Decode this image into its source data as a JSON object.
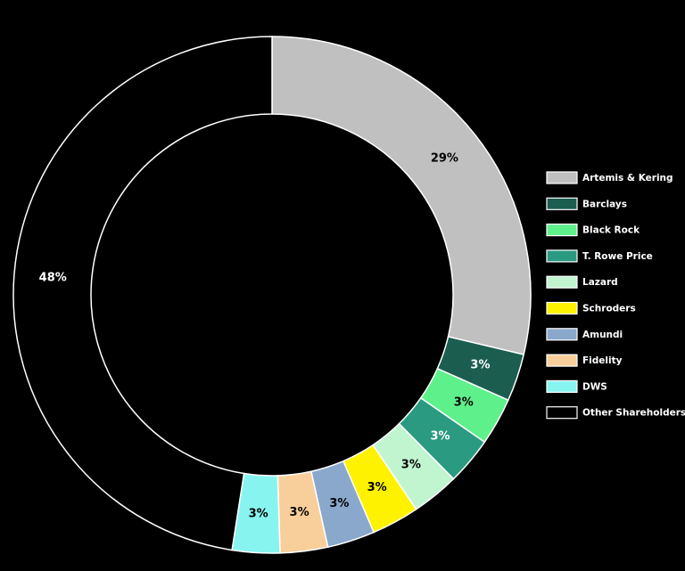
{
  "chart_data": {
    "type": "donut",
    "categories": [
      "Artemis & Kering",
      "Barclays",
      "Black Rock",
      "T. Rowe Price",
      "Lazard",
      "Schroders",
      "Amundi",
      "Fidelity",
      "DWS",
      "Other Shareholders"
    ],
    "values": [
      29,
      3,
      3,
      3,
      3,
      3,
      3,
      3,
      3,
      48
    ],
    "value_labels": [
      "29%",
      "3%",
      "3%",
      "3%",
      "3%",
      "3%",
      "3%",
      "3%",
      "3%",
      "48%"
    ],
    "colors": [
      "#c0c0c0",
      "#1b5e50",
      "#5ef08a",
      "#2a9a80",
      "#c0f5d0",
      "#fff200",
      "#8aa8cc",
      "#f8cf9a",
      "#88f4f0",
      "#000000"
    ],
    "legend": "right"
  }
}
